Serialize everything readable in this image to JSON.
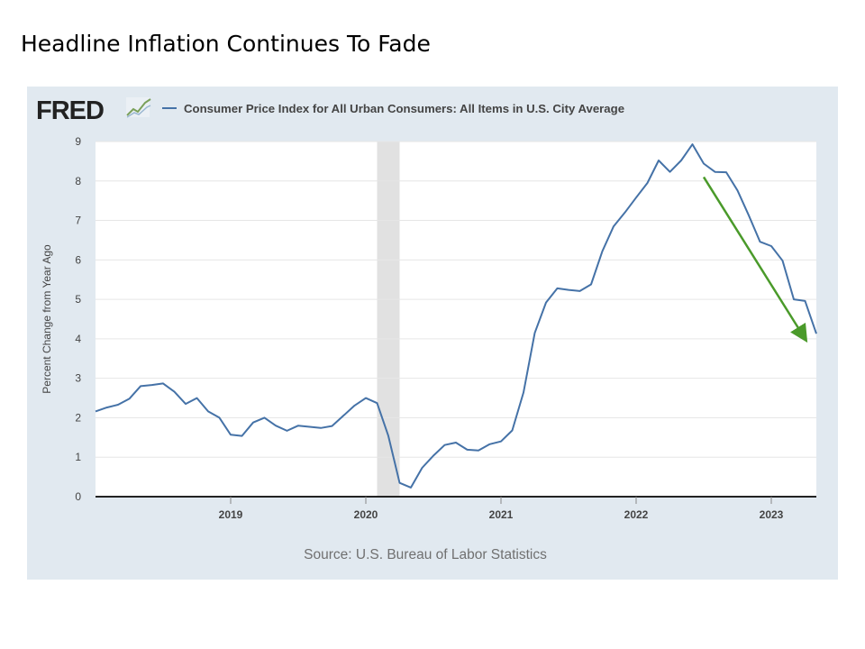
{
  "slide": {
    "title": "Headline Inflation Continues To Fade"
  },
  "colors": {
    "panel_background": "#e1e9f0",
    "plot_background": "#ffffff",
    "series_line": "#4572a7",
    "recession_shade": "#e1e1e1",
    "trend_arrow": "#4a9a2a",
    "fred_logo": "#222222"
  },
  "chart_data": {
    "type": "line",
    "logo": "FRED",
    "logo_icon": "fred-line-chart-icon",
    "source": "Source: U.S. Bureau of Labor Statistics",
    "ylabel": "Percent Change from Year Ago",
    "ylim": [
      0,
      9
    ],
    "yticks": [
      "0",
      "1",
      "2",
      "3",
      "4",
      "5",
      "6",
      "7",
      "8",
      "9"
    ],
    "xticks": [
      "2019",
      "2020",
      "2021",
      "2022",
      "2023"
    ],
    "grid": true,
    "x_start": "2018-01",
    "x_end": "2023-05",
    "recession": {
      "start": "2020-02",
      "end": "2020-04"
    },
    "trend_arrow": {
      "from": [
        "2022-07",
        8.1
      ],
      "to": [
        "2023-04",
        4.0
      ],
      "direction": "down"
    },
    "series": [
      {
        "name": "Consumer Price Index for All Urban Consumers: All Items in U.S. City Average",
        "x": [
          "2018-01",
          "2018-02",
          "2018-03",
          "2018-04",
          "2018-05",
          "2018-06",
          "2018-07",
          "2018-08",
          "2018-09",
          "2018-10",
          "2018-11",
          "2018-12",
          "2019-01",
          "2019-02",
          "2019-03",
          "2019-04",
          "2019-05",
          "2019-06",
          "2019-07",
          "2019-08",
          "2019-09",
          "2019-10",
          "2019-11",
          "2019-12",
          "2020-01",
          "2020-02",
          "2020-03",
          "2020-04",
          "2020-05",
          "2020-06",
          "2020-07",
          "2020-08",
          "2020-09",
          "2020-10",
          "2020-11",
          "2020-12",
          "2021-01",
          "2021-02",
          "2021-03",
          "2021-04",
          "2021-05",
          "2021-06",
          "2021-07",
          "2021-08",
          "2021-09",
          "2021-10",
          "2021-11",
          "2021-12",
          "2022-01",
          "2022-02",
          "2022-03",
          "2022-04",
          "2022-05",
          "2022-06",
          "2022-07",
          "2022-08",
          "2022-09",
          "2022-10",
          "2022-11",
          "2022-12",
          "2023-01",
          "2023-02",
          "2023-03",
          "2023-04",
          "2023-05"
        ],
        "values": [
          2.16,
          2.26,
          2.33,
          2.48,
          2.8,
          2.83,
          2.87,
          2.66,
          2.35,
          2.5,
          2.16,
          2.0,
          1.57,
          1.54,
          1.88,
          2.0,
          1.8,
          1.67,
          1.8,
          1.77,
          1.74,
          1.79,
          2.05,
          2.31,
          2.5,
          2.37,
          1.54,
          0.35,
          0.23,
          0.73,
          1.04,
          1.31,
          1.37,
          1.19,
          1.17,
          1.33,
          1.4,
          1.68,
          2.64,
          4.15,
          4.92,
          5.28,
          5.24,
          5.21,
          5.38,
          6.22,
          6.85,
          7.2,
          7.58,
          7.95,
          8.52,
          8.23,
          8.52,
          8.93,
          8.44,
          8.23,
          8.22,
          7.76,
          7.13,
          6.46,
          6.35,
          5.98,
          5.0,
          4.96,
          4.13
        ]
      }
    ]
  }
}
